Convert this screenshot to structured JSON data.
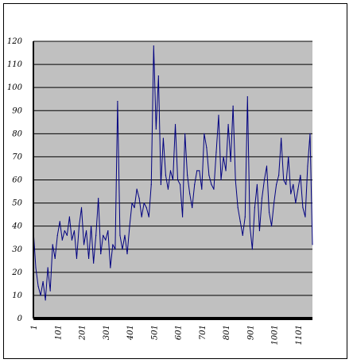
{
  "chart_data": {
    "type": "line",
    "title": "",
    "xlabel": "",
    "ylabel": "",
    "ylim": [
      0,
      120
    ],
    "xlim": [
      1,
      117
    ],
    "grid": true,
    "legend": "none",
    "y_ticks": [
      0,
      10,
      20,
      30,
      40,
      50,
      60,
      70,
      80,
      90,
      100,
      110,
      120
    ],
    "y_tick_labels": [
      "0",
      "10",
      "20",
      "30",
      "40",
      "50",
      "60",
      "70",
      "80",
      "90",
      "100",
      "110",
      "120"
    ],
    "x_ticks": [
      1,
      11,
      21,
      31,
      41,
      51,
      61,
      71,
      81,
      91,
      101,
      111
    ],
    "x_tick_labels": [
      "1",
      "101",
      "201",
      "301",
      "401",
      "501",
      "601",
      "701",
      "801",
      "901",
      "1001",
      "1101"
    ],
    "colors": {
      "plot_background": "#c0c0c0",
      "series": "#000080",
      "gridline": "#000000",
      "axis": "#000000"
    },
    "series": [
      {
        "x": [
          1,
          2,
          3,
          4,
          5,
          6,
          7,
          8,
          9,
          10,
          11,
          12,
          13,
          14,
          15,
          16,
          17,
          18,
          19,
          20,
          21,
          22,
          23,
          24,
          25,
          26,
          27,
          28,
          29,
          30,
          31,
          32,
          33,
          34,
          35,
          36,
          37,
          38,
          39,
          40,
          41,
          42,
          43,
          44,
          45,
          46,
          47,
          48,
          49,
          50,
          51,
          52,
          53,
          54,
          55,
          56,
          57,
          58,
          59,
          60,
          61,
          62,
          63,
          64,
          65,
          66,
          67,
          68,
          69,
          70,
          71,
          72,
          73,
          74,
          75,
          76,
          77,
          78,
          79,
          80,
          81,
          82,
          83,
          84,
          85,
          86,
          87,
          88,
          89,
          90,
          91,
          92,
          93,
          94,
          95,
          96,
          97,
          98,
          99,
          100,
          101,
          102,
          103,
          104,
          105,
          106,
          107,
          108,
          109,
          110,
          111,
          112,
          113,
          114,
          115,
          116,
          117
        ],
        "values": [
          38,
          22,
          14,
          10,
          16,
          8,
          22,
          12,
          32,
          26,
          36,
          42,
          34,
          38,
          36,
          44,
          34,
          38,
          26,
          40,
          48,
          32,
          38,
          26,
          40,
          24,
          36,
          52,
          28,
          36,
          34,
          38,
          22,
          32,
          30,
          94,
          36,
          30,
          36,
          28,
          40,
          50,
          48,
          56,
          52,
          44,
          50,
          48,
          44,
          58,
          118,
          82,
          105,
          58,
          78,
          62,
          56,
          64,
          60,
          84,
          60,
          58,
          44,
          80,
          62,
          54,
          48,
          58,
          64,
          64,
          56,
          80,
          74,
          62,
          58,
          56,
          72,
          88,
          60,
          70,
          64,
          84,
          68,
          92,
          60,
          48,
          42,
          36,
          44,
          96,
          40,
          30,
          48,
          58,
          38,
          52,
          60,
          66,
          46,
          40,
          50,
          58,
          62,
          78,
          60,
          58,
          70,
          54,
          58,
          50,
          56,
          62,
          48,
          44,
          66,
          80,
          32
        ]
      }
    ]
  }
}
